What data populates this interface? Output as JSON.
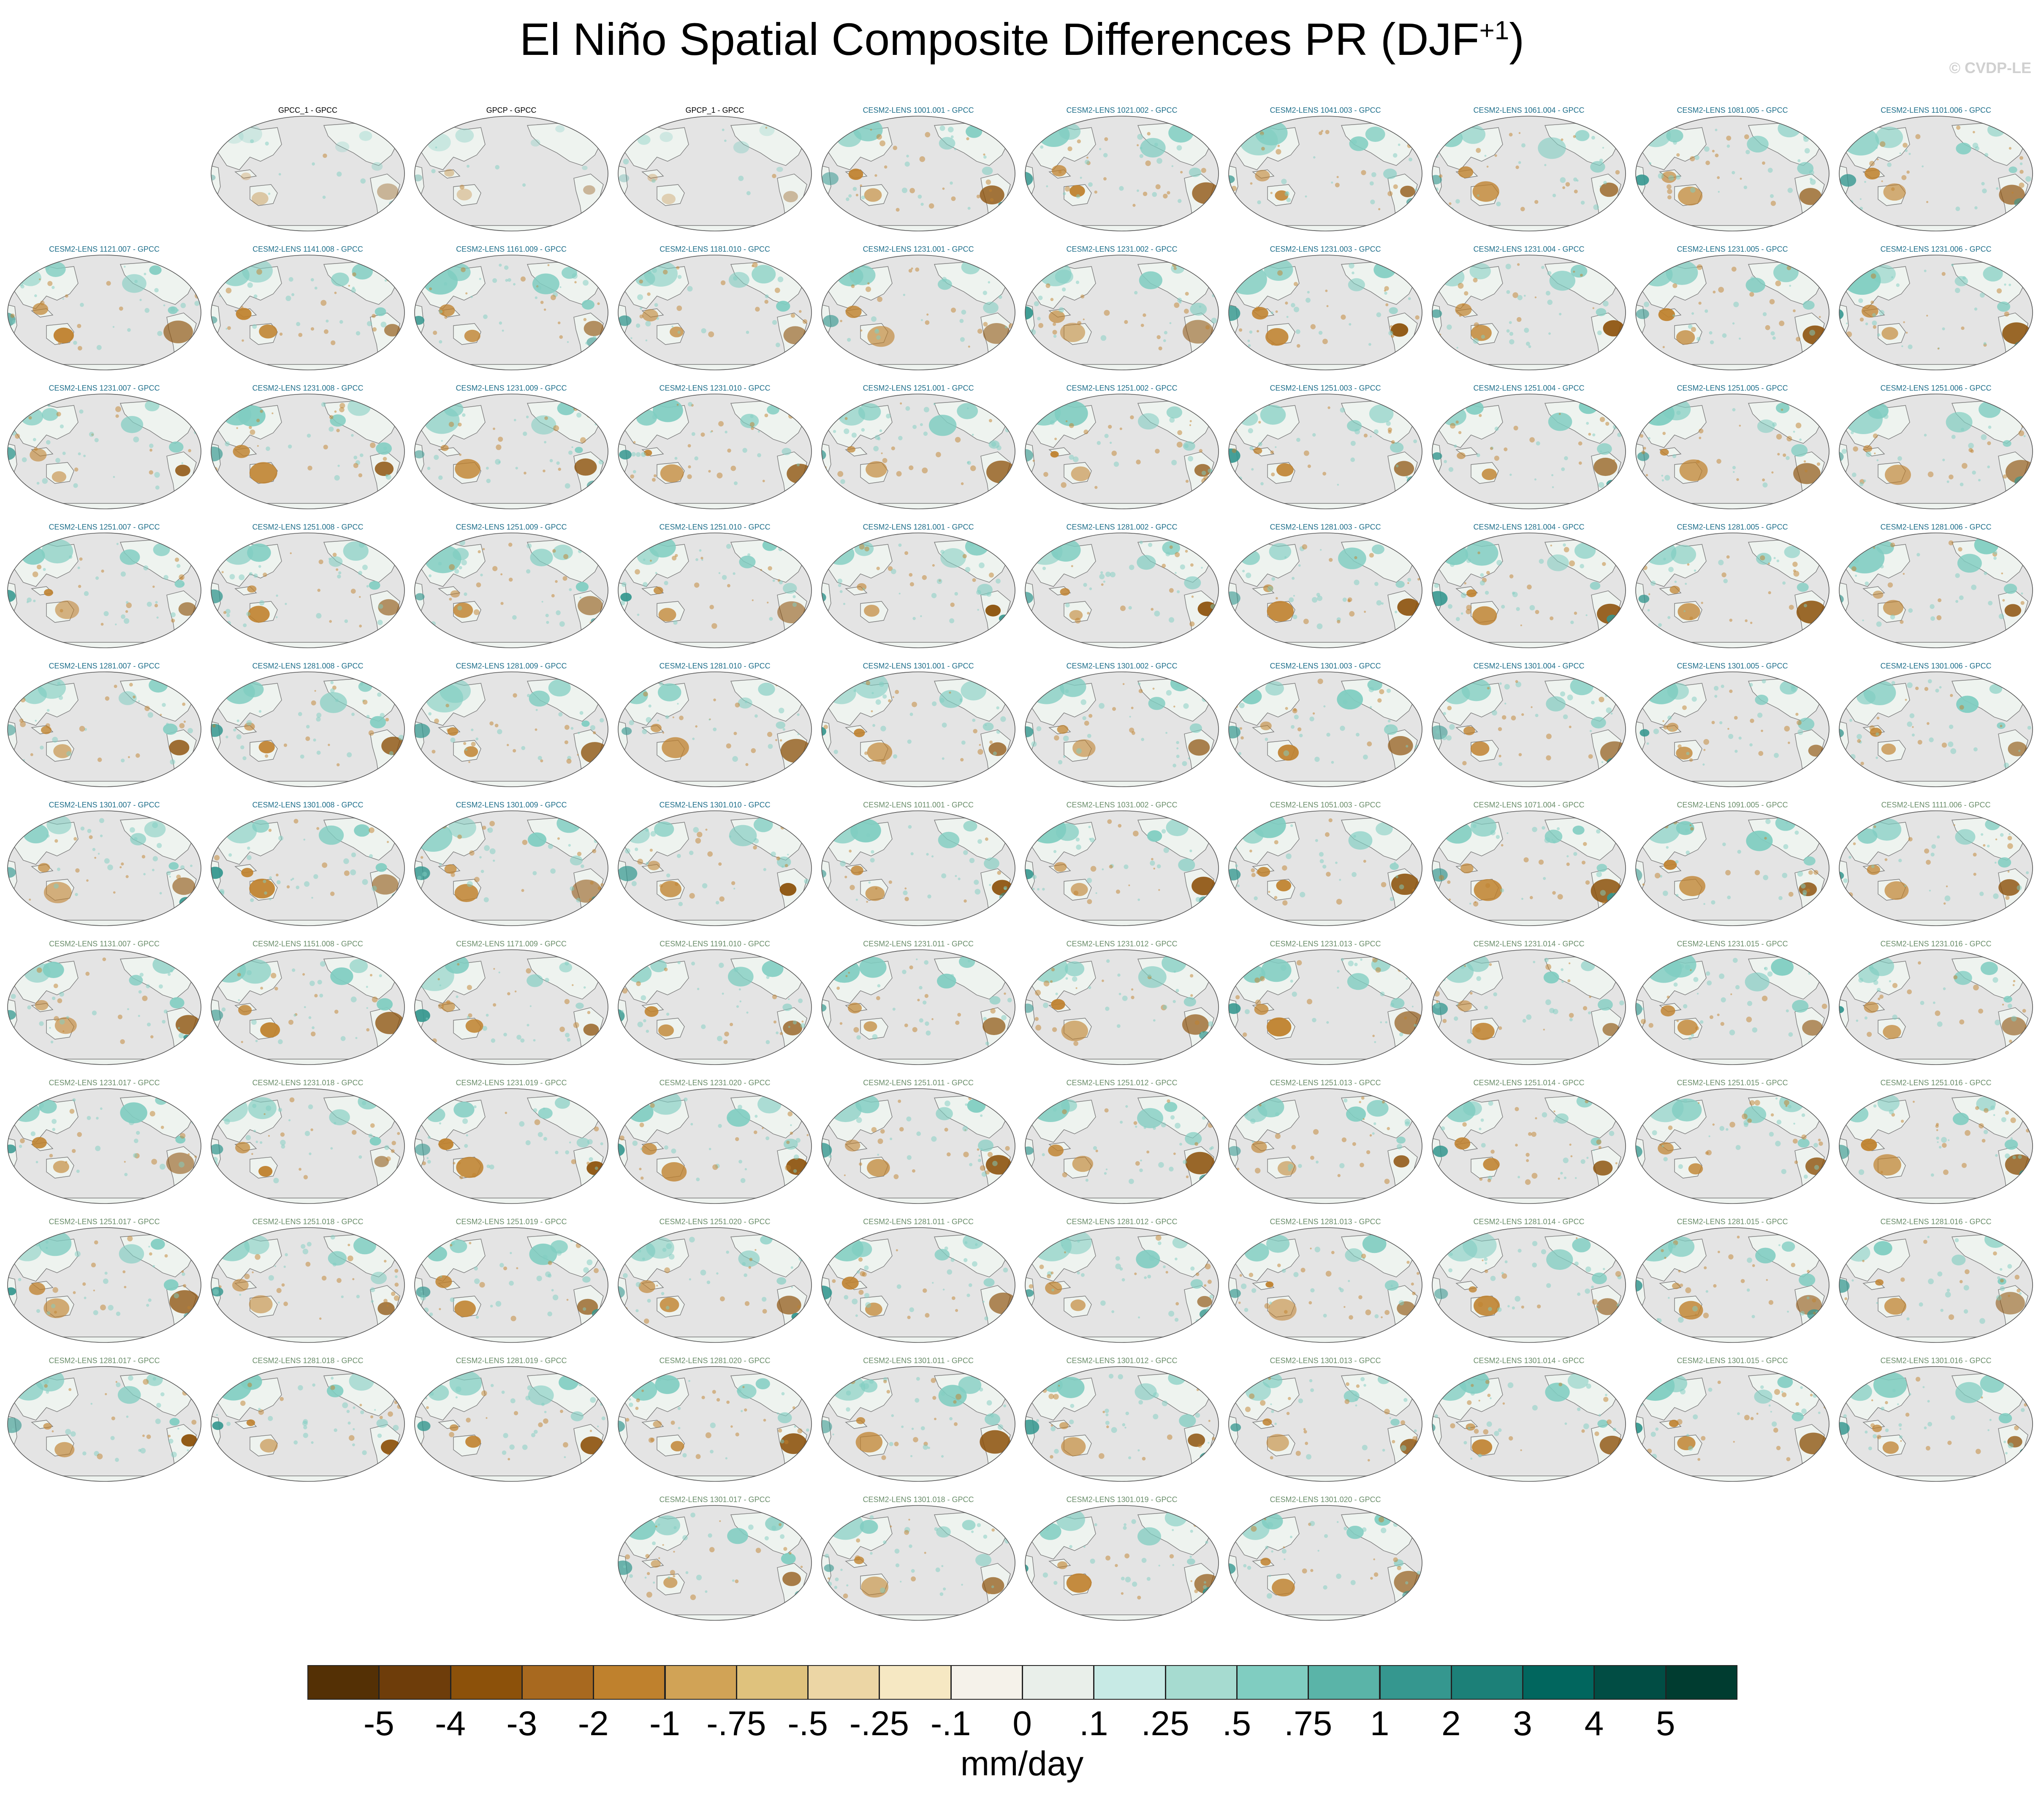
{
  "title": {
    "main": "El Niño Spatial Composite Differences PR (DJF",
    "sup": "+1",
    "close": ")"
  },
  "copyright": "© CVDP-LE",
  "panel_rows": [
    [
      "",
      "GPCC_1 - GPCC",
      "GPCP - GPCC",
      "GPCP_1 - GPCC",
      "CESM2-LENS 1001.001 - GPCC",
      "CESM2-LENS 1021.002 - GPCC",
      "CESM2-LENS 1041.003 - GPCC",
      "CESM2-LENS 1061.004 - GPCC",
      "CESM2-LENS 1081.005 - GPCC",
      "CESM2-LENS 1101.006 - GPCC"
    ],
    [
      "CESM2-LENS 1121.007 - GPCC",
      "CESM2-LENS 1141.008 - GPCC",
      "CESM2-LENS 1161.009 - GPCC",
      "CESM2-LENS 1181.010 - GPCC",
      "CESM2-LENS 1231.001 - GPCC",
      "CESM2-LENS 1231.002 - GPCC",
      "CESM2-LENS 1231.003 - GPCC",
      "CESM2-LENS 1231.004 - GPCC",
      "CESM2-LENS 1231.005 - GPCC",
      "CESM2-LENS 1231.006 - GPCC"
    ],
    [
      "CESM2-LENS 1231.007 - GPCC",
      "CESM2-LENS 1231.008 - GPCC",
      "CESM2-LENS 1231.009 - GPCC",
      "CESM2-LENS 1231.010 - GPCC",
      "CESM2-LENS 1251.001 - GPCC",
      "CESM2-LENS 1251.002 - GPCC",
      "CESM2-LENS 1251.003 - GPCC",
      "CESM2-LENS 1251.004 - GPCC",
      "CESM2-LENS 1251.005 - GPCC",
      "CESM2-LENS 1251.006 - GPCC"
    ],
    [
      "CESM2-LENS 1251.007 - GPCC",
      "CESM2-LENS 1251.008 - GPCC",
      "CESM2-LENS 1251.009 - GPCC",
      "CESM2-LENS 1251.010 - GPCC",
      "CESM2-LENS 1281.001 - GPCC",
      "CESM2-LENS 1281.002 - GPCC",
      "CESM2-LENS 1281.003 - GPCC",
      "CESM2-LENS 1281.004 - GPCC",
      "CESM2-LENS 1281.005 - GPCC",
      "CESM2-LENS 1281.006 - GPCC"
    ],
    [
      "CESM2-LENS 1281.007 - GPCC",
      "CESM2-LENS 1281.008 - GPCC",
      "CESM2-LENS 1281.009 - GPCC",
      "CESM2-LENS 1281.010 - GPCC",
      "CESM2-LENS 1301.001 - GPCC",
      "CESM2-LENS 1301.002 - GPCC",
      "CESM2-LENS 1301.003 - GPCC",
      "CESM2-LENS 1301.004 - GPCC",
      "CESM2-LENS 1301.005 - GPCC",
      "CESM2-LENS 1301.006 - GPCC"
    ],
    [
      "CESM2-LENS 1301.007 - GPCC",
      "CESM2-LENS 1301.008 - GPCC",
      "CESM2-LENS 1301.009 - GPCC",
      "CESM2-LENS 1301.010 - GPCC",
      "CESM2-LENS 1011.001 - GPCC",
      "CESM2-LENS 1031.002 - GPCC",
      "CESM2-LENS 1051.003 - GPCC",
      "CESM2-LENS 1071.004 - GPCC",
      "CESM2-LENS 1091.005 - GPCC",
      "CESM2-LENS 1111.006 - GPCC"
    ],
    [
      "CESM2-LENS 1131.007 - GPCC",
      "CESM2-LENS 1151.008 - GPCC",
      "CESM2-LENS 1171.009 - GPCC",
      "CESM2-LENS 1191.010 - GPCC",
      "CESM2-LENS 1231.011 - GPCC",
      "CESM2-LENS 1231.012 - GPCC",
      "CESM2-LENS 1231.013 - GPCC",
      "CESM2-LENS 1231.014 - GPCC",
      "CESM2-LENS 1231.015 - GPCC",
      "CESM2-LENS 1231.016 - GPCC"
    ],
    [
      "CESM2-LENS 1231.017 - GPCC",
      "CESM2-LENS 1231.018 - GPCC",
      "CESM2-LENS 1231.019 - GPCC",
      "CESM2-LENS 1231.020 - GPCC",
      "CESM2-LENS 1251.011 - GPCC",
      "CESM2-LENS 1251.012 - GPCC",
      "CESM2-LENS 1251.013 - GPCC",
      "CESM2-LENS 1251.014 - GPCC",
      "CESM2-LENS 1251.015 - GPCC",
      "CESM2-LENS 1251.016 - GPCC"
    ],
    [
      "CESM2-LENS 1251.017 - GPCC",
      "CESM2-LENS 1251.018 - GPCC",
      "CESM2-LENS 1251.019 - GPCC",
      "CESM2-LENS 1251.020 - GPCC",
      "CESM2-LENS 1281.011 - GPCC",
      "CESM2-LENS 1281.012 - GPCC",
      "CESM2-LENS 1281.013 - GPCC",
      "CESM2-LENS 1281.014 - GPCC",
      "CESM2-LENS 1281.015 - GPCC",
      "CESM2-LENS 1281.016 - GPCC"
    ],
    [
      "CESM2-LENS 1281.017 - GPCC",
      "CESM2-LENS 1281.018 - GPCC",
      "CESM2-LENS 1281.019 - GPCC",
      "CESM2-LENS 1281.020 - GPCC",
      "CESM2-LENS 1301.011 - GPCC",
      "CESM2-LENS 1301.012 - GPCC",
      "CESM2-LENS 1301.013 - GPCC",
      "CESM2-LENS 1301.014 - GPCC",
      "CESM2-LENS 1301.015 - GPCC",
      "CESM2-LENS 1301.016 - GPCC"
    ],
    [
      "",
      "",
      "",
      "CESM2-LENS 1301.017 - GPCC",
      "CESM2-LENS 1301.018 - GPCC",
      "CESM2-LENS 1301.019 - GPCC",
      "CESM2-LENS 1301.020 - GPCC",
      "",
      "",
      ""
    ]
  ],
  "label_colors": {
    "obs": "#000000",
    "model_first": "#1f6f8b",
    "model_second": "#6b8e6b"
  },
  "second_group_start_row": 5,
  "second_group_start_col": 4,
  "colorbar": {
    "colors": [
      "#543005",
      "#6e3d0a",
      "#8c510a",
      "#a8691f",
      "#bf812d",
      "#d1a356",
      "#dfc27d",
      "#ecd6a5",
      "#f6e8c3",
      "#f5f2ea",
      "#e9efea",
      "#c7eae5",
      "#a6dbd0",
      "#80cdc1",
      "#5ab4a8",
      "#35978f",
      "#1c8078",
      "#01665e",
      "#014d44",
      "#003c30"
    ],
    "labels": [
      "-5",
      "-4",
      "-3",
      "-2",
      "-1",
      "-.75",
      "-.5",
      "-.25",
      "-.1",
      "0",
      ".1",
      ".25",
      ".5",
      ".75",
      "1",
      "2",
      "3",
      "4",
      "5"
    ],
    "units": "mm/day"
  },
  "map_colors": {
    "ocean": "#e4e4e4",
    "land_neutral": "#eef3ef",
    "dry": "#bf812d",
    "dry_dark": "#8c510a",
    "wet": "#80cdc1",
    "wet_dark": "#35978f",
    "outline": "#7a7a7a"
  }
}
